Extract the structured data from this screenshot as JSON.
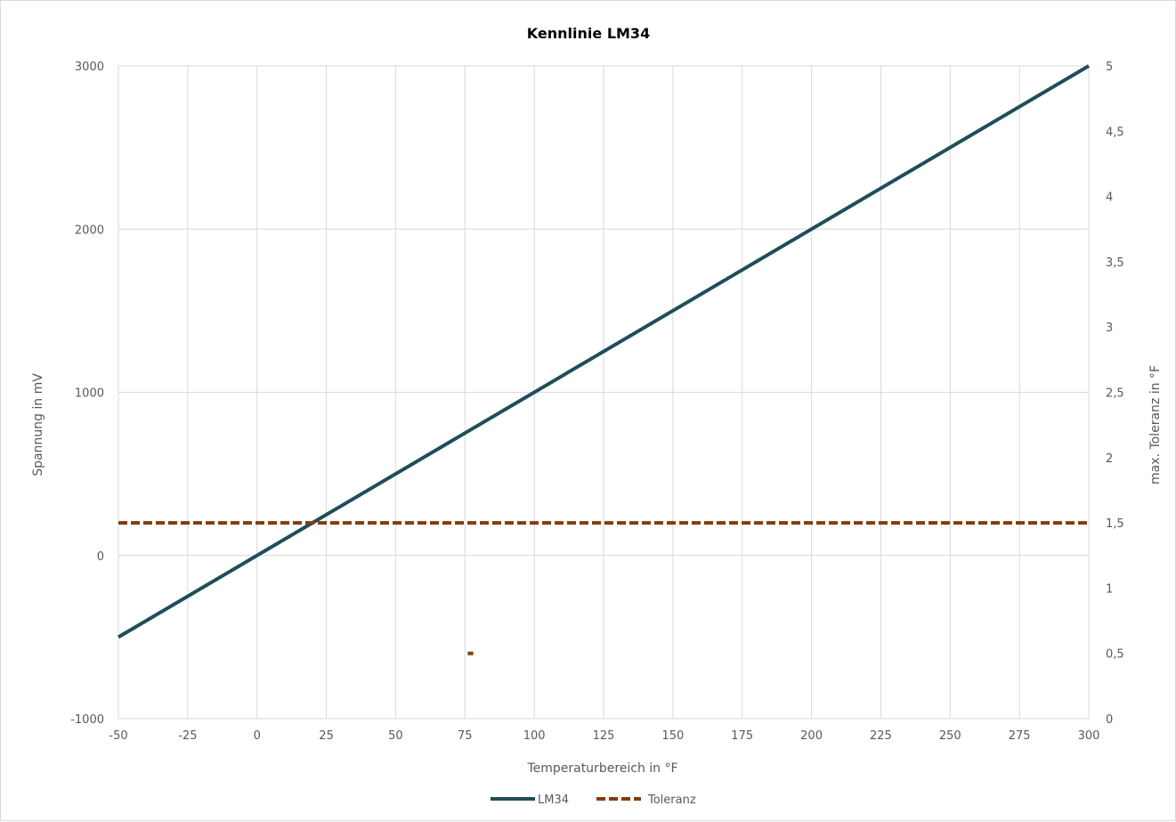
{
  "chart_data": {
    "type": "line",
    "title": "Kennlinie LM34",
    "xlabel": "Temperaturbereich in °F",
    "ylabel": "Spannung in mV",
    "y2label": "max. Toleranz in °F",
    "xlim": [
      -50,
      300
    ],
    "ylim": [
      -1000,
      3000
    ],
    "y2lim": [
      0,
      5
    ],
    "x_ticks": [
      "-50",
      "-25",
      "0",
      "25",
      "50",
      "75",
      "100",
      "125",
      "150",
      "175",
      "200",
      "225",
      "250",
      "275",
      "300"
    ],
    "y_ticks": [
      "-1000",
      "0",
      "1000",
      "2000",
      "3000"
    ],
    "y2_ticks": [
      "0",
      "0,5",
      "1",
      "1,5",
      "2",
      "2,5",
      "3",
      "3,5",
      "4",
      "4,5",
      "5"
    ],
    "grid": true,
    "legend_position": "bottom",
    "series": [
      {
        "name": "LM34",
        "axis": "left",
        "style": "solid",
        "color": "#1f4e5a",
        "x": [
          -50,
          300
        ],
        "y": [
          -500,
          3000
        ]
      },
      {
        "name": "Toleranz",
        "axis": "right",
        "style": "dashed",
        "color": "#843c0c",
        "x": [
          -50,
          300
        ],
        "y": [
          1.5,
          1.5
        ]
      },
      {
        "axis": "right",
        "style": "dashed",
        "color": "#843c0c",
        "x": [
          76,
          78
        ],
        "y": [
          0.5,
          0.5
        ]
      }
    ]
  }
}
